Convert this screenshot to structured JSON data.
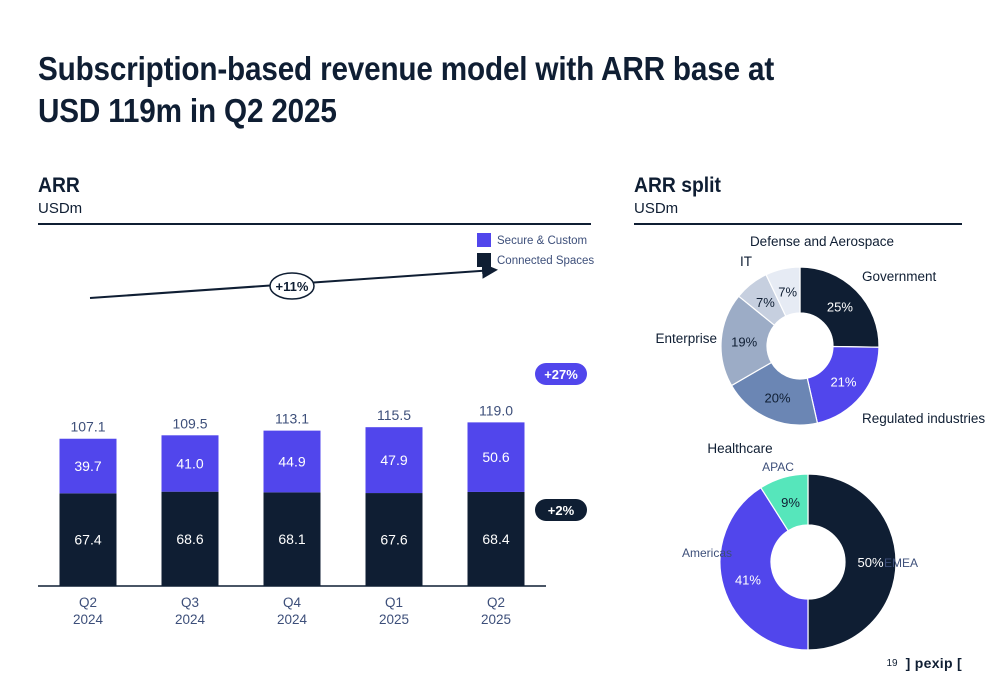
{
  "title": {
    "line1": "Subscription-based revenue model with ARR base at",
    "line2": "USD 119m in Q2 2025"
  },
  "left": {
    "title": "ARR",
    "unit": "USDm"
  },
  "right": {
    "title": "ARR split",
    "unit": "USDm"
  },
  "footer": {
    "page": "19",
    "logo": "] pexip ["
  },
  "colors": {
    "dark": "#0f1e33",
    "accent": "#5146ec",
    "text_muted": "#3d4f7a",
    "healthcare": "#6b86b4",
    "enterprise": "#9cacc6",
    "it": "#c6cfdf",
    "defense": "#e6ebf4",
    "apac": "#56e6bb"
  },
  "chart_data": [
    {
      "type": "bar",
      "stacked": true,
      "categories": [
        [
          "Q2",
          "2024"
        ],
        [
          "Q3",
          "2024"
        ],
        [
          "Q4",
          "2024"
        ],
        [
          "Q1",
          "2025"
        ],
        [
          "Q2",
          "2025"
        ]
      ],
      "series": [
        {
          "name": "Connected Spaces",
          "values": [
            67.4,
            68.6,
            68.1,
            67.6,
            68.4
          ],
          "labels": [
            "67.4",
            "68.6",
            "68.1",
            "67.6",
            "68.4"
          ],
          "color": "#0f1e33"
        },
        {
          "name": "Secure & Custom",
          "values": [
            39.7,
            41.0,
            44.9,
            47.9,
            50.6
          ],
          "labels": [
            "39.7",
            "41.0",
            "44.9",
            "47.9",
            "50.6"
          ],
          "color": "#5146ec"
        }
      ],
      "totals": [
        107.1,
        109.5,
        113.1,
        115.5,
        119.0
      ],
      "total_labels": [
        "107.1",
        "109.5",
        "113.1",
        "115.5",
        "119.0"
      ],
      "legend": [
        "Secure & Custom",
        "Connected Spaces"
      ],
      "legend_position": "top-right",
      "annotations": {
        "growth_total": "+11%",
        "growth_secure": "+27%",
        "growth_connected": "+2%"
      },
      "ylim": [
        0,
        130
      ]
    },
    {
      "type": "pie",
      "donut": true,
      "slices": [
        {
          "label": "Government",
          "value": 25,
          "pct": "25%",
          "color": "#0f1e33"
        },
        {
          "label": "Regulated industries",
          "value": 21,
          "pct": "21%",
          "color": "#5146ec"
        },
        {
          "label": "Healthcare",
          "value": 20,
          "pct": "20%",
          "color": "#6b86b4"
        },
        {
          "label": "Enterprise",
          "value": 19,
          "pct": "19%",
          "color": "#9cacc6"
        },
        {
          "label": "IT",
          "value": 7,
          "pct": "7%",
          "color": "#c6cfdf"
        },
        {
          "label": "Defense and Aerospace",
          "value": 7,
          "pct": "7%",
          "color": "#e6ebf4"
        }
      ]
    },
    {
      "type": "pie",
      "donut": true,
      "slices": [
        {
          "label": "EMEA",
          "value": 50,
          "pct": "50%",
          "color": "#0f1e33"
        },
        {
          "label": "Americas",
          "value": 41,
          "pct": "41%",
          "color": "#5146ec"
        },
        {
          "label": "APAC",
          "value": 9,
          "pct": "9%",
          "color": "#56e6bb"
        }
      ]
    }
  ]
}
